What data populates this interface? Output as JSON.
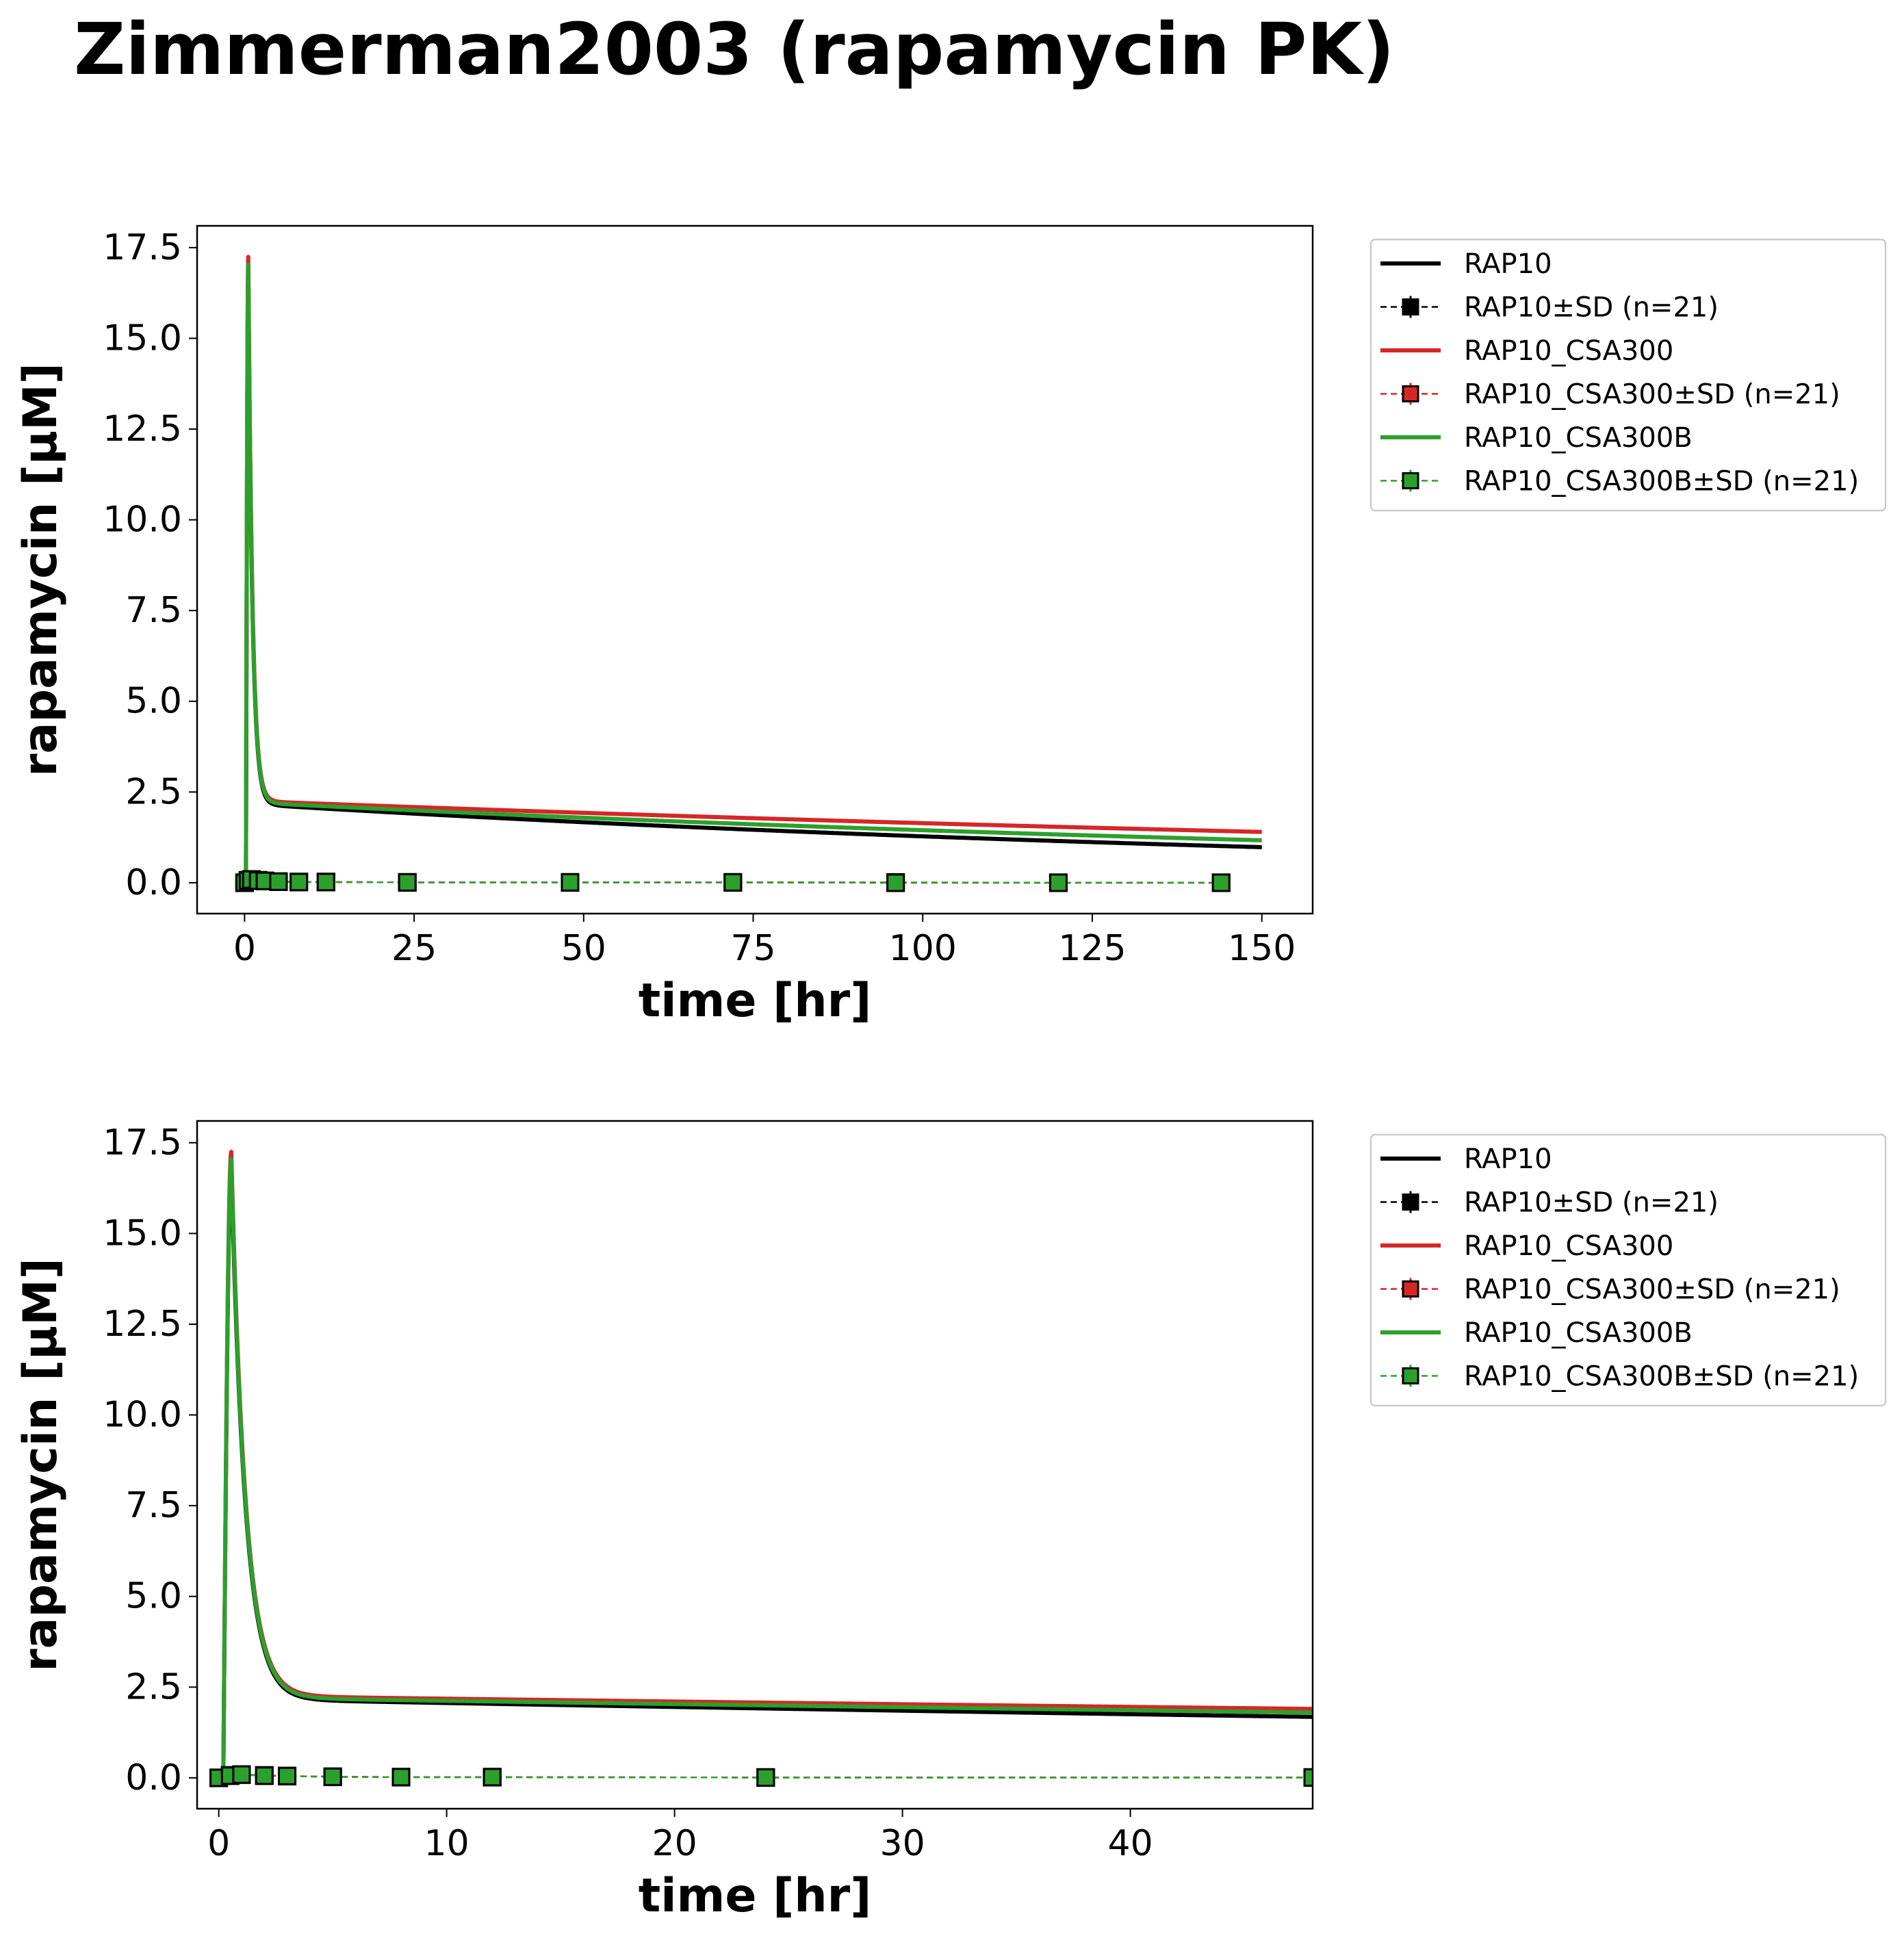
{
  "title": "Zimmerman2003 (rapamycin PK)",
  "colors": {
    "RAP10": "#000000",
    "RAP10_CSA300": "#d62728",
    "RAP10_CSA300B": "#2ca02c"
  },
  "legend_entries": [
    {
      "label": "RAP10",
      "kind": "line",
      "color": "#000000"
    },
    {
      "label": "RAP10±SD (n=21)",
      "kind": "marker",
      "color": "#000000"
    },
    {
      "label": "RAP10_CSA300",
      "kind": "line",
      "color": "#d62728"
    },
    {
      "label": "RAP10_CSA300±SD (n=21)",
      "kind": "marker",
      "color": "#d62728"
    },
    {
      "label": "RAP10_CSA300B",
      "kind": "line",
      "color": "#2ca02c"
    },
    {
      "label": "RAP10_CSA300B±SD (n=21)",
      "kind": "marker",
      "color": "#2ca02c"
    }
  ],
  "chart_data": [
    {
      "type": "line",
      "xlabel": "time [hr]",
      "ylabel": "rapamycin [µM]",
      "xlim": [
        -7,
        157.5
      ],
      "ylim": [
        -0.85,
        18.1
      ],
      "xticks": [
        0,
        25,
        50,
        75,
        100,
        125,
        150
      ],
      "yticks": [
        0.0,
        2.5,
        5.0,
        7.5,
        10.0,
        12.5,
        15.0,
        17.5
      ],
      "grid": false,
      "legend_position": "outside-right-top",
      "sim_series": [
        {
          "name": "RAP10",
          "color": "#000000",
          "peak": 16.8,
          "plateau": 2.13,
          "end": 0.98
        },
        {
          "name": "RAP10_CSA300",
          "color": "#d62728",
          "peak": 17.25,
          "plateau": 2.23,
          "end": 1.4
        },
        {
          "name": "RAP10_CSA300B",
          "color": "#2ca02c",
          "peak": 17.05,
          "plateau": 2.18,
          "end": 1.17
        }
      ],
      "data_series": [
        {
          "name": "RAP10±SD (n=21)",
          "color": "#000000",
          "x": [
            0,
            0.5,
            1,
            2,
            3,
            5,
            8,
            12,
            24,
            48,
            72,
            96,
            120,
            144
          ],
          "y": [
            0.0,
            0.07,
            0.09,
            0.06,
            0.05,
            0.03,
            0.02,
            0.02,
            0.01,
            0.01,
            0.01,
            0.0,
            0.0,
            0.0
          ]
        },
        {
          "name": "RAP10_CSA300±SD (n=21)",
          "color": "#d62728",
          "x": [
            0,
            0.5,
            1,
            2,
            3,
            5,
            8,
            12,
            24,
            48,
            72,
            96,
            120,
            144
          ],
          "y": [
            0.0,
            0.06,
            0.09,
            0.07,
            0.05,
            0.03,
            0.02,
            0.02,
            0.01,
            0.01,
            0.01,
            0.01,
            0.0,
            0.0
          ]
        },
        {
          "name": "RAP10_CSA300B±SD (n=21)",
          "color": "#2ca02c",
          "x": [
            0,
            0.5,
            1,
            2,
            3,
            5,
            8,
            12,
            24,
            48,
            72,
            96,
            120,
            144
          ],
          "y": [
            0.0,
            0.06,
            0.09,
            0.06,
            0.05,
            0.03,
            0.02,
            0.02,
            0.01,
            0.01,
            0.01,
            0.0,
            0.0,
            0.0
          ]
        }
      ]
    },
    {
      "type": "line",
      "xlabel": "time [hr]",
      "ylabel": "rapamycin [µM]",
      "xlim": [
        -0.95,
        48
      ],
      "ylim": [
        -0.85,
        18.1
      ],
      "xticks": [
        0,
        10,
        20,
        30,
        40
      ],
      "yticks": [
        0.0,
        2.5,
        5.0,
        7.5,
        10.0,
        12.5,
        15.0,
        17.5
      ],
      "grid": false,
      "legend_position": "outside-right-top",
      "sim_series": [
        {
          "name": "RAP10",
          "color": "#000000",
          "peak": 16.8,
          "plateau": 2.13,
          "end": 1.68
        },
        {
          "name": "RAP10_CSA300",
          "color": "#d62728",
          "peak": 17.25,
          "plateau": 2.23,
          "end": 1.9
        },
        {
          "name": "RAP10_CSA300B",
          "color": "#2ca02c",
          "peak": 17.05,
          "plateau": 2.18,
          "end": 1.8
        }
      ],
      "data_series": [
        {
          "name": "RAP10±SD (n=21)",
          "color": "#000000",
          "x": [
            0,
            0.5,
            1,
            2,
            3,
            5,
            8,
            12,
            24,
            48
          ],
          "y": [
            0.0,
            0.07,
            0.09,
            0.06,
            0.05,
            0.03,
            0.02,
            0.02,
            0.01,
            0.01
          ]
        },
        {
          "name": "RAP10_CSA300±SD (n=21)",
          "color": "#d62728",
          "x": [
            0,
            0.5,
            1,
            2,
            3,
            5,
            8,
            12,
            24,
            48
          ],
          "y": [
            0.0,
            0.06,
            0.09,
            0.07,
            0.05,
            0.03,
            0.02,
            0.02,
            0.01,
            0.01
          ]
        },
        {
          "name": "RAP10_CSA300B±SD (n=21)",
          "color": "#2ca02c",
          "x": [
            0,
            0.5,
            1,
            2,
            3,
            5,
            8,
            12,
            24,
            48
          ],
          "y": [
            0.0,
            0.06,
            0.09,
            0.06,
            0.05,
            0.03,
            0.02,
            0.02,
            0.01,
            0.01
          ]
        }
      ]
    }
  ]
}
